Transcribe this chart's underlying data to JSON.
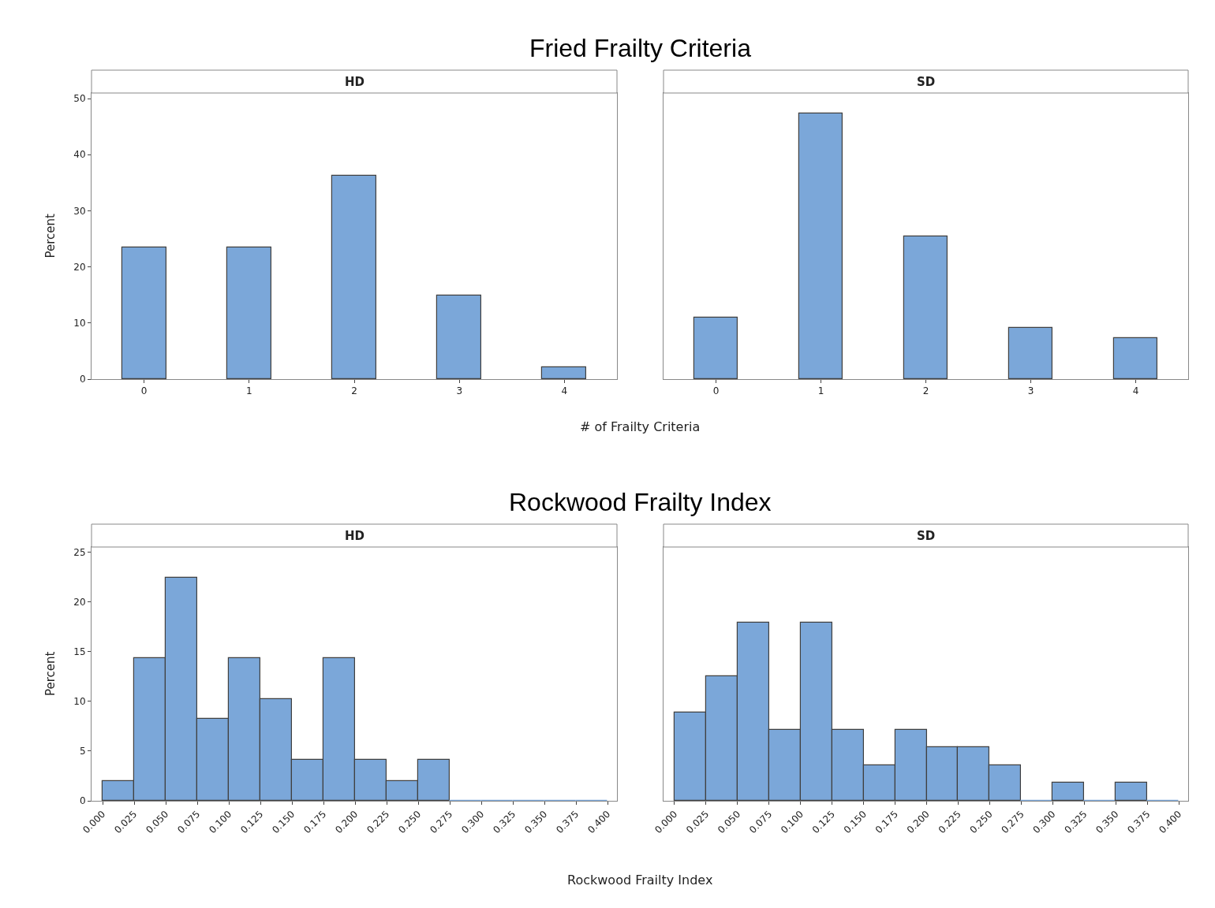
{
  "chart_data": [
    {
      "type": "bar",
      "title": "Fried Frailty Criteria",
      "subtitle": "HD",
      "ylabel": "Percent",
      "xlabel": "# of Frailty Criteria",
      "categories": [
        "0",
        "1",
        "2",
        "3",
        "4"
      ],
      "values": [
        23.4,
        23.4,
        36.2,
        14.9,
        2.1
      ],
      "color": "#7ba7d9",
      "ylim": [
        0,
        51
      ],
      "yticks": [
        0,
        10,
        20,
        30,
        40,
        50
      ]
    },
    {
      "type": "bar",
      "subtitle": "SD",
      "categories": [
        "0",
        "1",
        "2",
        "3",
        "4"
      ],
      "values": [
        10.9,
        47.3,
        25.5,
        9.1,
        7.3
      ],
      "color": "#7ba7d9",
      "ylim": [
        0,
        51
      ],
      "yticks": [
        0,
        10,
        20,
        30,
        40,
        50
      ],
      "tick_labels": "x"
    },
    {
      "type": "histogram",
      "title": "Rockwood Frailty Index",
      "subtitle": "HD",
      "ylabel": "Percent",
      "xlabel": "Rockwood Frailty Index",
      "bins": [
        0,
        0.025,
        0.05,
        0.075,
        0.1,
        0.125,
        0.15,
        0.175,
        0.2,
        0.225,
        0.25,
        0.275,
        0.3,
        0.325,
        0.35,
        0.375,
        0.4
      ],
      "values": [
        2.0,
        14.3,
        22.4,
        8.2,
        14.3,
        10.2,
        4.1,
        14.3,
        4.1,
        2.0,
        4.1,
        0,
        0,
        0,
        0,
        0
      ],
      "color": "#7ba7d9",
      "xlim": [
        -0.00875,
        0.4075
      ],
      "xticks": [
        {
          "value": 0,
          "label": "0.000"
        },
        {
          "value": 0.025,
          "label": "0.025"
        },
        {
          "value": 0.05,
          "label": "0.050"
        },
        {
          "value": 0.075,
          "label": "0.075"
        },
        {
          "value": 0.1,
          "label": "0.100"
        },
        {
          "value": 0.125,
          "label": "0.125"
        },
        {
          "value": 0.15,
          "label": "0.150"
        },
        {
          "value": 0.175,
          "label": "0.175"
        },
        {
          "value": 0.2,
          "label": "0.200"
        },
        {
          "value": 0.225,
          "label": "0.225"
        },
        {
          "value": 0.25,
          "label": "0.250"
        },
        {
          "value": 0.275,
          "label": "0.275"
        },
        {
          "value": 0.3,
          "label": "0.300"
        },
        {
          "value": 0.325,
          "label": "0.325"
        },
        {
          "value": 0.35,
          "label": "0.350"
        },
        {
          "value": 0.375,
          "label": "0.375"
        },
        {
          "value": 0.4,
          "label": "0.400"
        }
      ],
      "ylim": [
        0,
        25.5
      ],
      "yticks": [
        0,
        5,
        10,
        15,
        20,
        25
      ]
    },
    {
      "type": "histogram",
      "subtitle": "SD",
      "bins": [
        0,
        0.025,
        0.05,
        0.075,
        0.1,
        0.125,
        0.15,
        0.175,
        0.2,
        0.225,
        0.25,
        0.275,
        0.3,
        0.325,
        0.35,
        0.375,
        0.4
      ],
      "values": [
        8.9,
        12.5,
        17.9,
        7.1,
        17.9,
        7.1,
        3.6,
        7.1,
        5.4,
        5.4,
        3.6,
        0,
        1.8,
        0,
        1.8,
        0
      ],
      "color": "#7ba7d9",
      "xlim": [
        -0.00875,
        0.4075
      ],
      "xticks": [
        {
          "value": 0,
          "label": "0.000"
        },
        {
          "value": 0.025,
          "label": "0.025"
        },
        {
          "value": 0.05,
          "label": "0.050"
        },
        {
          "value": 0.075,
          "label": "0.075"
        },
        {
          "value": 0.1,
          "label": "0.100"
        },
        {
          "value": 0.125,
          "label": "0.125"
        },
        {
          "value": 0.15,
          "label": "0.150"
        },
        {
          "value": 0.175,
          "label": "0.175"
        },
        {
          "value": 0.2,
          "label": "0.200"
        },
        {
          "value": 0.225,
          "label": "0.225"
        },
        {
          "value": 0.25,
          "label": "0.250"
        },
        {
          "value": 0.275,
          "label": "0.275"
        },
        {
          "value": 0.3,
          "label": "0.300"
        },
        {
          "value": 0.325,
          "label": "0.325"
        },
        {
          "value": 0.35,
          "label": "0.350"
        },
        {
          "value": 0.375,
          "label": "0.375"
        },
        {
          "value": 0.4,
          "label": "0.400"
        }
      ],
      "ylim": [
        0,
        25.5
      ],
      "yticks": [
        0,
        5,
        10,
        15,
        20,
        25
      ],
      "tick_labels": "x"
    }
  ]
}
